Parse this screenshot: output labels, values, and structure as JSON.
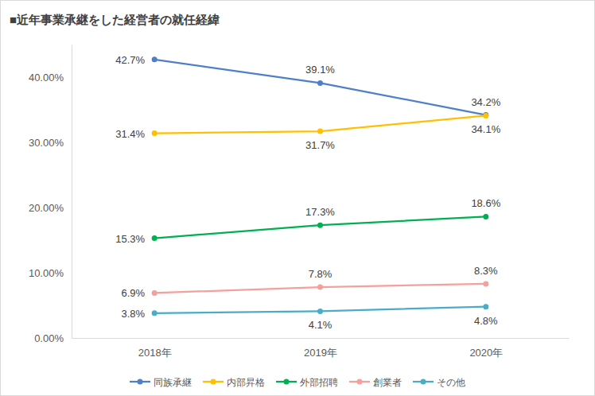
{
  "chart_data": {
    "type": "line",
    "title": "■近年事業承継をした経営者の就任経緯",
    "categories": [
      "2018年",
      "2019年",
      "2020年"
    ],
    "series": [
      {
        "name": "同族承継",
        "color": "#4f7fc6",
        "marker": "circle",
        "values": [
          42.7,
          39.1,
          34.2
        ],
        "value_labels": [
          "42.7%",
          "39.1%",
          "34.2%"
        ]
      },
      {
        "name": "内部昇格",
        "color": "#ffc000",
        "marker": "circle",
        "values": [
          31.4,
          31.7,
          34.1
        ],
        "value_labels": [
          "31.4%",
          "31.7%",
          "34.1%"
        ]
      },
      {
        "name": "外部招聘",
        "color": "#00b050",
        "marker": "circle",
        "values": [
          15.3,
          17.3,
          18.6
        ],
        "value_labels": [
          "15.3%",
          "17.3%",
          "18.6%"
        ]
      },
      {
        "name": "創業者",
        "color": "#f4a09c",
        "marker": "circle",
        "values": [
          6.9,
          7.8,
          8.3
        ],
        "value_labels": [
          "6.9%",
          "7.8%",
          "8.3%"
        ]
      },
      {
        "name": "その他",
        "color": "#4bacc6",
        "marker": "circle",
        "values": [
          3.8,
          4.1,
          4.8
        ],
        "value_labels": [
          "3.8%",
          "4.1%",
          "4.8%"
        ]
      }
    ],
    "ylim": [
      0,
      45
    ],
    "yticks": [
      {
        "value": 0,
        "label": "0.00%"
      },
      {
        "value": 10,
        "label": "10.00%"
      },
      {
        "value": 20,
        "label": "20.00%"
      },
      {
        "value": 30,
        "label": "30.00%"
      },
      {
        "value": 40,
        "label": "40.00%"
      }
    ],
    "grid": false,
    "data_labels": true,
    "legend": "bottom"
  }
}
